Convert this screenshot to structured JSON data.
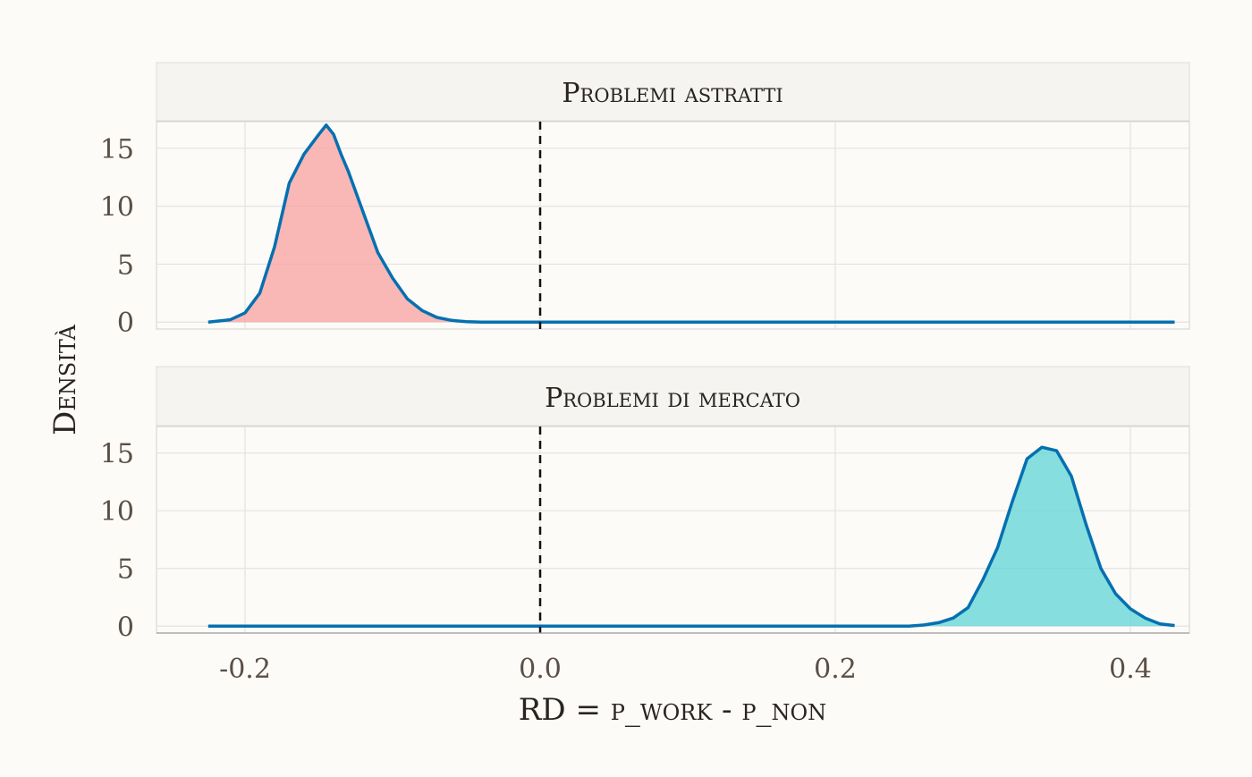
{
  "chart_data": {
    "type": "area",
    "xlabel": "RD = p_work - p_non",
    "ylabel": "Densità",
    "xlim": [
      -0.26,
      0.44
    ],
    "x_ticks": [
      -0.2,
      0.0,
      0.2,
      0.4
    ],
    "x_tick_labels": [
      "-0.2",
      "0.0",
      "0.2",
      "0.4"
    ],
    "ylim": [
      -0.6,
      17.3
    ],
    "y_ticks": [
      0,
      5,
      10,
      15
    ],
    "y_tick_labels": [
      "0",
      "5",
      "10",
      "15"
    ],
    "reference_line": {
      "x": 0.0,
      "style": "dashed",
      "color": "#111111"
    },
    "grid": true,
    "line_color": "#0570b0",
    "facets": [
      {
        "title": "Problemi astratti",
        "fill_color": "#f8a0a0",
        "x": [
          -0.225,
          -0.21,
          -0.2,
          -0.19,
          -0.18,
          -0.17,
          -0.16,
          -0.15,
          -0.145,
          -0.14,
          -0.135,
          -0.13,
          -0.12,
          -0.11,
          -0.1,
          -0.09,
          -0.08,
          -0.07,
          -0.06,
          -0.05,
          -0.04,
          0.0,
          0.1,
          0.2,
          0.3,
          0.43
        ],
        "y": [
          0.0,
          0.2,
          0.8,
          2.5,
          6.5,
          12.0,
          14.5,
          16.2,
          17.0,
          16.2,
          14.5,
          13.0,
          9.5,
          6.0,
          3.8,
          2.0,
          1.0,
          0.4,
          0.15,
          0.03,
          0.0,
          0.0,
          0.0,
          0.0,
          0.0,
          0.0
        ]
      },
      {
        "title": "Problemi di mercato",
        "fill_color": "#5fd4d6",
        "x": [
          -0.225,
          -0.1,
          0.0,
          0.1,
          0.2,
          0.25,
          0.26,
          0.27,
          0.28,
          0.29,
          0.3,
          0.31,
          0.32,
          0.33,
          0.34,
          0.35,
          0.36,
          0.37,
          0.38,
          0.39,
          0.4,
          0.41,
          0.42,
          0.43
        ],
        "y": [
          0.0,
          0.0,
          0.0,
          0.0,
          0.0,
          0.0,
          0.1,
          0.3,
          0.7,
          1.6,
          4.0,
          6.8,
          10.8,
          14.5,
          15.5,
          15.2,
          13.0,
          8.8,
          5.0,
          2.8,
          1.5,
          0.7,
          0.2,
          0.05
        ]
      }
    ]
  }
}
